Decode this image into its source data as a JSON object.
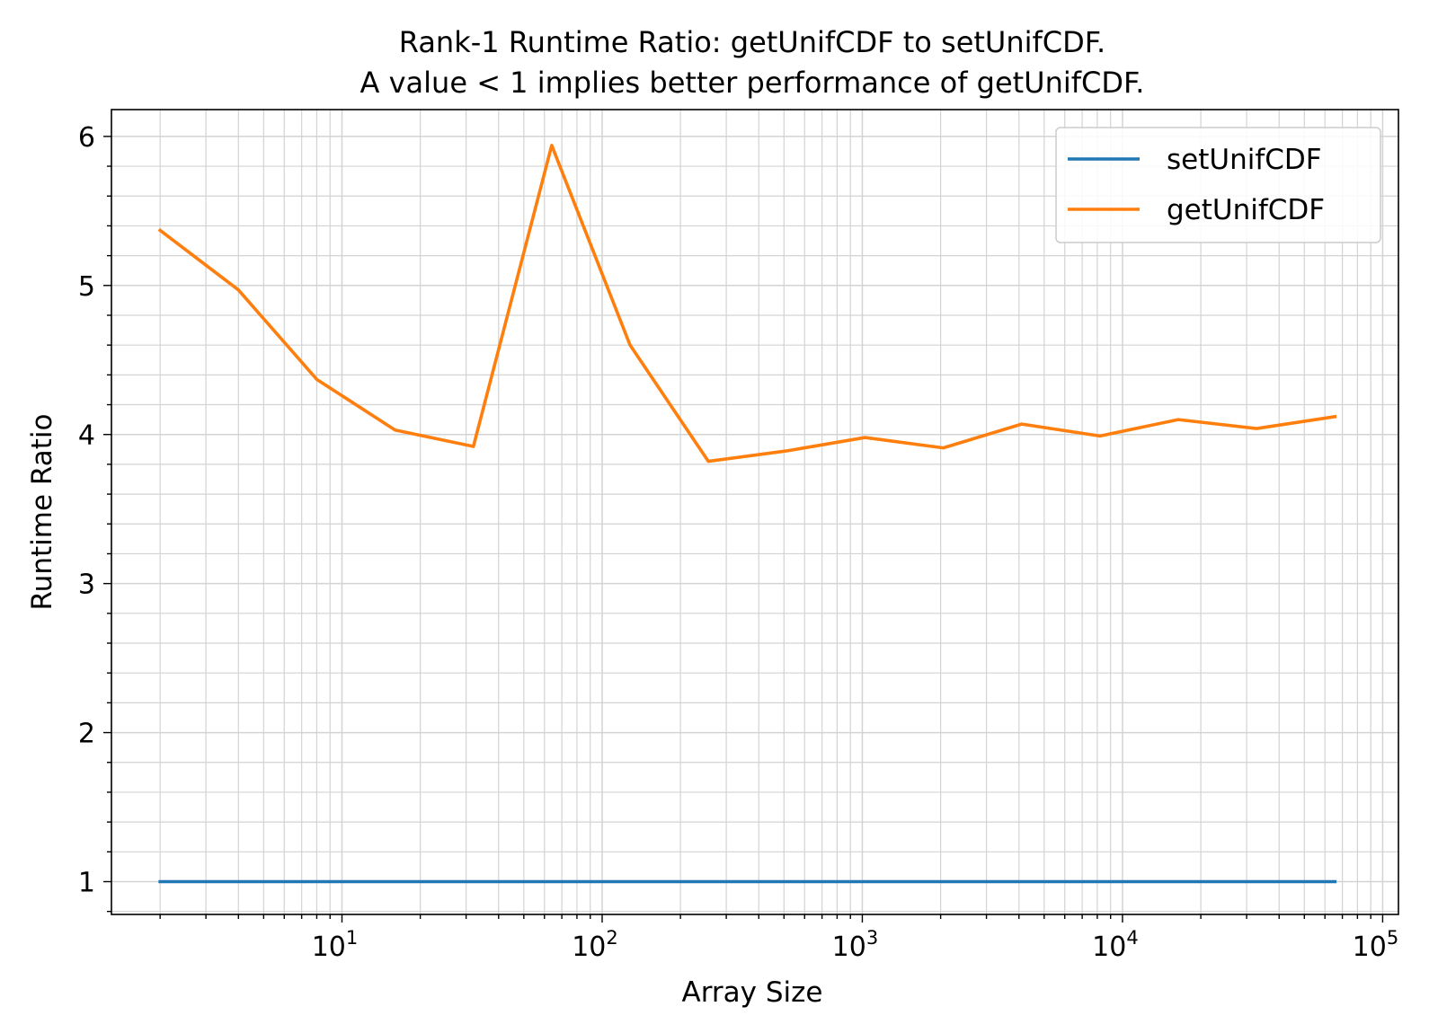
{
  "chart_data": {
    "type": "line",
    "title_lines": [
      "Rank-1 Runtime Ratio: getUnifCDF to setUnifCDF.",
      "A value < 1 implies better performance of getUnifCDF."
    ],
    "xlabel": "Array Size",
    "ylabel": "Runtime Ratio",
    "x_scale": "log",
    "xlim": [
      1.3,
      115000
    ],
    "ylim": [
      0.78,
      6.18
    ],
    "x_ticks": [
      {
        "value": 10,
        "base": "10",
        "exp": "1"
      },
      {
        "value": 100,
        "base": "10",
        "exp": "2"
      },
      {
        "value": 1000,
        "base": "10",
        "exp": "3"
      },
      {
        "value": 10000,
        "base": "10",
        "exp": "4"
      },
      {
        "value": 100000,
        "base": "10",
        "exp": "5"
      }
    ],
    "y_ticks": [
      {
        "value": 1,
        "label": "1"
      },
      {
        "value": 2,
        "label": "2"
      },
      {
        "value": 3,
        "label": "3"
      },
      {
        "value": 4,
        "label": "4"
      },
      {
        "value": 5,
        "label": "5"
      },
      {
        "value": 6,
        "label": "6"
      }
    ],
    "grid": true,
    "legend_position": "top-right",
    "x": [
      2,
      4,
      8,
      16,
      32,
      64,
      128,
      256,
      512,
      1024,
      2048,
      4096,
      8192,
      16384,
      32768,
      65536
    ],
    "series": [
      {
        "name": "setUnifCDF",
        "color": "#1f77b4",
        "values": [
          1,
          1,
          1,
          1,
          1,
          1,
          1,
          1,
          1,
          1,
          1,
          1,
          1,
          1,
          1,
          1
        ]
      },
      {
        "name": "getUnifCDF",
        "color": "#ff7f0e",
        "values": [
          5.37,
          4.97,
          4.37,
          4.03,
          3.92,
          5.94,
          4.6,
          3.82,
          3.89,
          3.98,
          3.91,
          4.07,
          3.99,
          4.1,
          4.04,
          4.12
        ]
      }
    ]
  }
}
